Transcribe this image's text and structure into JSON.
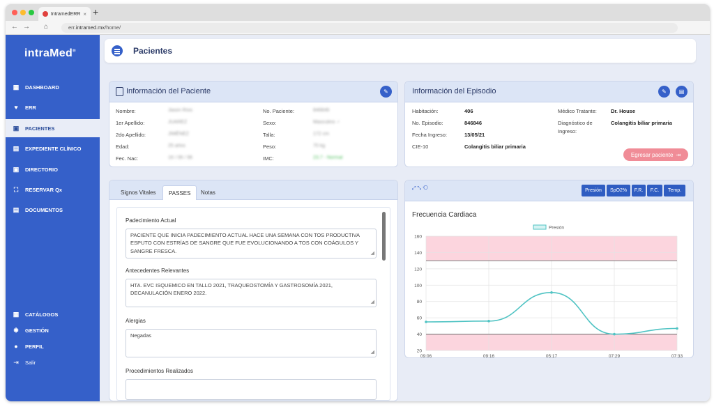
{
  "browser": {
    "tab_title": "IntramedERR",
    "tab_close": "×",
    "new_tab": "+",
    "url_prefix": "err.",
    "url_domain": "intramed.mx",
    "url_path": "/home/",
    "back": "←",
    "forward": "→",
    "home": "⌂",
    "traffic_colors": [
      "#ff5f57",
      "#febc2e",
      "#28c840"
    ]
  },
  "sidebar": {
    "logo": "intraMed",
    "logo_mark": "®",
    "items": [
      {
        "label": "DASHBOARD",
        "icon": "dashboard-icon",
        "glyph": "▦"
      },
      {
        "label": "ERR",
        "icon": "heartbeat-icon",
        "glyph": "♥"
      },
      {
        "label": "PACIENTES",
        "icon": "patient-icon",
        "glyph": "▣"
      },
      {
        "label": "EXPEDIENTE CLÍNICO",
        "icon": "clinical-record-icon",
        "glyph": "▤"
      },
      {
        "label": "DIRECTORIO",
        "icon": "directory-icon",
        "glyph": "▣"
      },
      {
        "label": "RESERVAR Qx",
        "icon": "bed-icon",
        "glyph": "⛶"
      },
      {
        "label": "DOCUMENTOS",
        "icon": "documents-icon",
        "glyph": "▤"
      }
    ],
    "bottom_items": [
      {
        "label": "CATÁLOGOS",
        "icon": "catalog-icon",
        "glyph": "▦"
      },
      {
        "label": "GESTIÓN",
        "icon": "gear-icon",
        "glyph": "✱"
      },
      {
        "label": "PERFIL",
        "icon": "user-icon",
        "glyph": "●"
      },
      {
        "label": "Salir",
        "icon": "logout-icon",
        "glyph": "⇥"
      }
    ],
    "active_index": 2
  },
  "header": {
    "title": "Pacientes"
  },
  "patient_card": {
    "title": "Información del Paciente",
    "left_labels": [
      "Nombre:",
      "1er Apellido:",
      "2do Apellido:",
      "Edad:",
      "Fec. Nac:"
    ],
    "left_values": [
      "Jason Ríos",
      "JUAREZ",
      "JIMÉNEZ",
      "25 años",
      "16 / 06 / 96"
    ],
    "right_labels": [
      "No. Paciente:",
      "Sexo:",
      "Talla:",
      "Peso:",
      "IMC:"
    ],
    "right_values": [
      "846846",
      "Masculino ♂",
      "172   cm",
      "70   kg",
      "23.7 - Normal"
    ]
  },
  "episode_card": {
    "title": "Información del Episodio",
    "labels": [
      "Habitación:",
      "No. Episodio:",
      "Fecha Ingreso:",
      "CIE-10"
    ],
    "values": [
      "406",
      "846846",
      "13/05/21",
      "Colangitis biliar primaria"
    ],
    "doctor_label": "Médico Tratante:",
    "doctor_value": "Dr. House",
    "diagnosis_label_1": "Diagnóstico de",
    "diagnosis_label_2": "Ingreso:",
    "diagnosis_value": "Colangitis biliar primaria",
    "discharge_button": "Egresar paciente"
  },
  "notes_card": {
    "tabs": [
      "Signos Vitales",
      "PASSES",
      "Notas"
    ],
    "active_tab": 1,
    "sections": [
      {
        "label": "Padecimiento Actual",
        "text": "PACIENTE QUE INICIA PADECIMIENTO ACTUAL HACE UNA SEMANA CON TOS PRODUCTIVA ESPUTO CON ESTRÍAS DE SANGRE QUE FUE EVOLUCIONANDO A TOS CON COÁGULOS Y SANGRE FRESCA."
      },
      {
        "label": "Antecedentes Relevantes",
        "text": "HTA. EVC ISQUEMICO EN TALLO 2021, TRAQUEOSTOMÍA Y GASTROSOMÍA 2021, DECANULACIÓN ENERO 2022."
      },
      {
        "label": "Alergias",
        "text": "Negadas"
      },
      {
        "label": "Procedimientos Realizados",
        "text": ""
      }
    ]
  },
  "vitals_card": {
    "tool_icons": "⤢ ⤡ ⟲",
    "buttons": [
      "Presión",
      "SpO2%",
      "F.R.",
      "F.C.",
      "Temp."
    ],
    "colors": {
      "line": "#4fc3c3",
      "band": "#fcd5de",
      "threshold": "#555555"
    }
  },
  "chart_data": {
    "type": "line",
    "title": "Frecuencia Cardiaca",
    "categories": [
      "09:06",
      "09:16",
      "05:17",
      "07:29",
      "07:33"
    ],
    "series": [
      {
        "name": "Presión",
        "values": [
          55,
          56,
          91,
          40,
          47
        ]
      }
    ],
    "ylim": [
      20,
      160
    ],
    "yticks": [
      20,
      40,
      60,
      80,
      100,
      120,
      140,
      160
    ],
    "shaded_bands": [
      [
        20,
        40
      ],
      [
        130,
        160
      ]
    ],
    "grid": true,
    "legend": "top-center"
  }
}
